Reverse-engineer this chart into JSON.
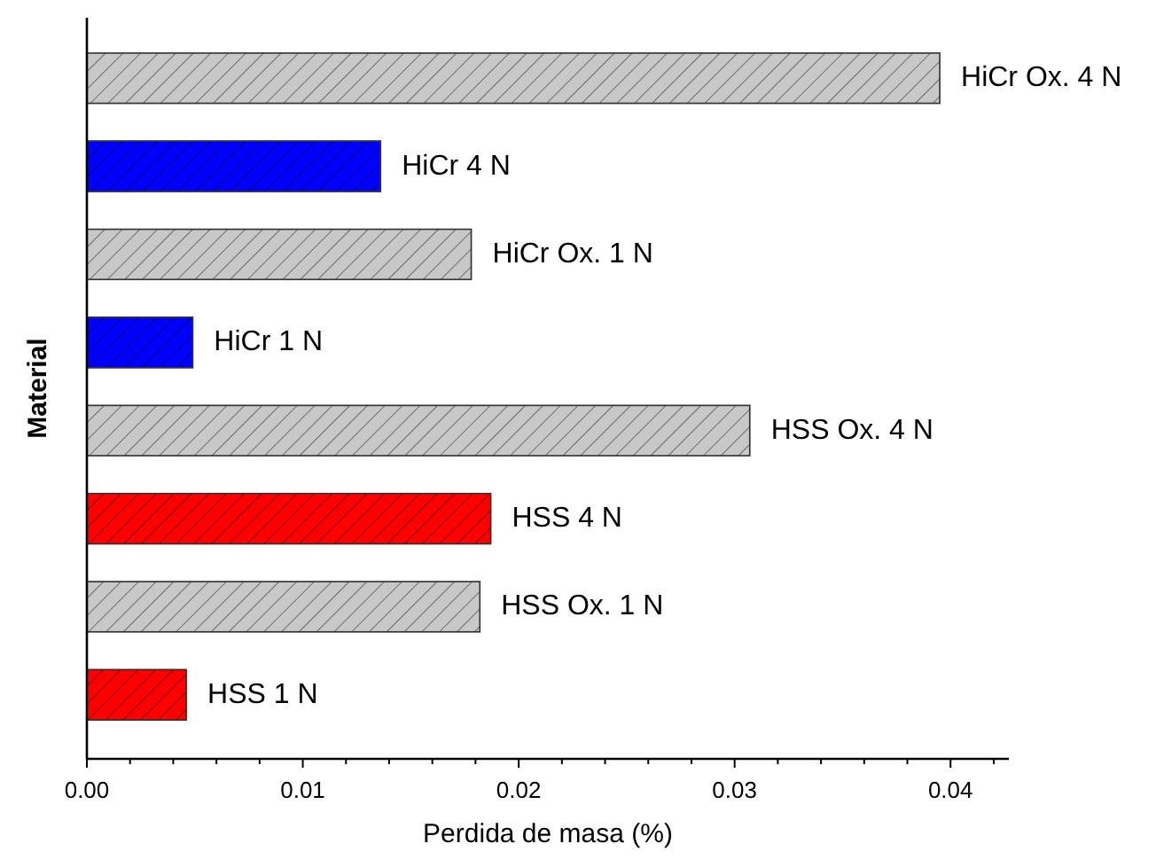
{
  "chart_data": {
    "type": "bar",
    "orientation": "horizontal",
    "xlabel": "Perdida de masa (%)",
    "ylabel": "Material",
    "categories": [
      "HiCr Ox. 4 N",
      "HiCr 4 N",
      "HiCr Ox. 1 N",
      "HiCr 1 N",
      "HSS Ox. 4 N",
      "HSS 4 N",
      "HSS Ox. 1 N",
      "HSS 1 N"
    ],
    "values": [
      0.0395,
      0.0136,
      0.0178,
      0.0049,
      0.0307,
      0.0187,
      0.0182,
      0.0046
    ],
    "colors": [
      "#c8c8c8",
      "#0000ff",
      "#c8c8c8",
      "#0000ff",
      "#c8c8c8",
      "#ff0000",
      "#c8c8c8",
      "#ff0000"
    ],
    "xlim": [
      0,
      0.0427
    ],
    "xticks": [
      {
        "value": 0,
        "label": "0.00"
      },
      0.01,
      0.02,
      0.03,
      0.04
    ],
    "grid": false,
    "tick_labels": "x"
  }
}
